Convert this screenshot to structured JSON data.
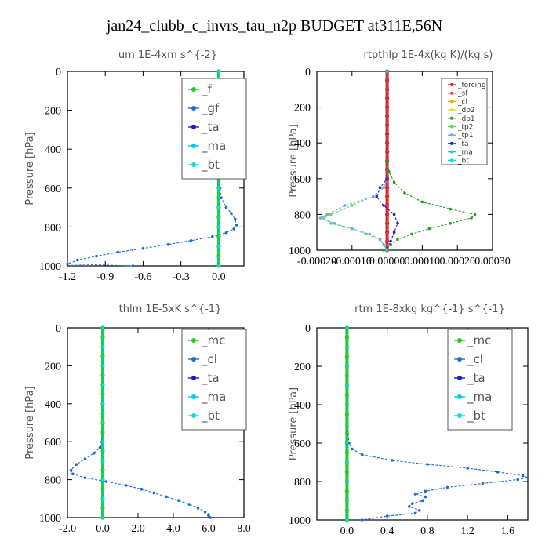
{
  "title": "jan24_clubb_c_invrs_tau_n2p  BUDGET at311E,56N",
  "chart_data": [
    {
      "type": "line",
      "title": "um   1E-4xm s^{-2}",
      "ylabel": "Pressure [hPa]",
      "xlim": [
        -1.2,
        0.2
      ],
      "ylim": [
        1000,
        0
      ],
      "xticks": [
        "-1.2",
        "-0.9",
        "-0.6",
        "-0.3",
        "0.0"
      ],
      "xtick_values": [
        -1.2,
        -0.9,
        -0.6,
        -0.3,
        0.0
      ],
      "yticks": [
        "0",
        "200",
        "400",
        "600",
        "800",
        "1000"
      ],
      "ytick_values": [
        0,
        200,
        400,
        600,
        800,
        1000
      ],
      "legend": {
        "position": "top-right",
        "size": "large",
        "entries": [
          "_f",
          "_gf",
          "_ta",
          "_ma",
          "_bt"
        ]
      },
      "series": [
        {
          "name": "_f",
          "color": "#22cc22",
          "y": [
            0,
            50,
            100,
            150,
            200,
            250,
            300,
            350,
            400,
            450,
            500,
            550,
            600,
            650,
            700,
            750,
            800,
            850,
            900,
            950,
            1000
          ],
          "x": [
            0,
            0,
            0,
            0,
            0,
            0,
            0,
            0,
            0,
            0,
            0,
            0,
            0,
            0,
            0,
            0,
            0,
            0,
            0,
            0,
            0
          ]
        },
        {
          "name": "_gf",
          "color": "#1a6cdc",
          "y": [
            0,
            100,
            200,
            300,
            400,
            500,
            600,
            650,
            700,
            730,
            760,
            790,
            810,
            830,
            850,
            870,
            890,
            910,
            930,
            950,
            970,
            990,
            1000
          ],
          "x": [
            0,
            0,
            0,
            0,
            0,
            0,
            0.01,
            0.02,
            0.06,
            0.1,
            0.13,
            0.14,
            0.12,
            0.06,
            -0.05,
            -0.22,
            -0.4,
            -0.6,
            -0.8,
            -0.97,
            -1.12,
            -1.2,
            -0.68
          ]
        },
        {
          "name": "_ta",
          "color": "#1a1add",
          "y": [
            0,
            200,
            400,
            600,
            800,
            1000
          ],
          "x": [
            0,
            0,
            0,
            0,
            0,
            0
          ]
        },
        {
          "name": "_ma",
          "color": "#00c8ff",
          "y": [
            0,
            200,
            400,
            600,
            800,
            1000
          ],
          "x": [
            0,
            0,
            0,
            0,
            0,
            0
          ]
        },
        {
          "name": "_bt",
          "color": "#00e0e0",
          "y": [
            0,
            100,
            200,
            300,
            400,
            500,
            600,
            700,
            800,
            900,
            1000
          ],
          "x": [
            0,
            0,
            0,
            0,
            0,
            0,
            0,
            0,
            0,
            0,
            0
          ]
        }
      ]
    },
    {
      "type": "line",
      "title": "rtpthlp   1E-4x(kg K)/(kg s)",
      "ylabel": "Pressure [hPa]",
      "xlim": [
        -0.0002,
        0.0003
      ],
      "ylim": [
        1000,
        0
      ],
      "xticks": [
        "-0.00020",
        "-0.00010",
        "0.00000",
        "0.00010",
        "0.00020",
        "0.00030"
      ],
      "xtick_values": [
        -0.0002,
        -0.0001,
        0,
        0.0001,
        0.0002,
        0.0003
      ],
      "yticks": [
        "0",
        "200",
        "400",
        "600",
        "800",
        "1000"
      ],
      "ytick_values": [
        0,
        200,
        400,
        600,
        800,
        1000
      ],
      "legend": {
        "position": "top-right",
        "size": "small",
        "entries": [
          "_forcing",
          "_sf",
          "_cl",
          "_dp2",
          "_dp1",
          "_tp2",
          "_tp1",
          "_ta",
          "_ma",
          "_bt"
        ]
      },
      "series": [
        {
          "name": "_forcing",
          "color": "#e02020",
          "y": [
            0,
            50,
            100,
            150,
            200,
            250,
            300,
            350,
            400,
            450,
            500,
            550,
            600,
            650,
            700,
            750,
            800,
            850,
            900,
            950,
            1000
          ],
          "x": [
            0,
            0,
            0,
            0,
            0,
            0,
            0,
            0,
            0,
            0,
            0,
            0,
            0,
            0,
            0,
            0,
            0,
            0,
            0,
            0,
            0
          ]
        },
        {
          "name": "_sf",
          "color": "#ff4040",
          "y": [
            0,
            1000
          ],
          "x": [
            0,
            0
          ]
        },
        {
          "name": "_cl",
          "color": "#ffaa00",
          "y": [
            0,
            1000
          ],
          "x": [
            0,
            0
          ]
        },
        {
          "name": "_dp2",
          "color": "#e8e020",
          "y": [
            0,
            1000
          ],
          "x": [
            0,
            0
          ]
        },
        {
          "name": "_dp1",
          "color": "#20a020",
          "y": [
            0,
            500,
            560,
            620,
            680,
            730,
            770,
            800,
            820,
            850,
            880,
            910,
            940,
            970,
            1000
          ],
          "x": [
            0,
            0,
            5e-06,
            2e-05,
            5e-05,
            0.0001,
            0.00018,
            0.00025,
            0.00024,
            0.00018,
            0.00012,
            7e-05,
            3e-05,
            1e-05,
            -1e-05
          ]
        },
        {
          "name": "_tp2",
          "color": "#50e050",
          "y": [
            0,
            600,
            650,
            700,
            750,
            800,
            820,
            850,
            880,
            910,
            940,
            970,
            1000
          ],
          "x": [
            0,
            0,
            -1e-05,
            -4e-05,
            -0.0001,
            -0.00016,
            -0.00018,
            -0.00016,
            -0.0001,
            -6e-05,
            -2e-05,
            -1e-05,
            0
          ]
        },
        {
          "name": "_tp1",
          "color": "#6fa0ff",
          "y": [
            0,
            600,
            650,
            700,
            750,
            800,
            820,
            850,
            880,
            910,
            940,
            970,
            1000
          ],
          "x": [
            0,
            0,
            -1e-05,
            -4e-05,
            -0.00012,
            -0.00017,
            -0.00019,
            -0.00015,
            -0.0001,
            -5e-05,
            -2e-05,
            -1e-05,
            0
          ]
        },
        {
          "name": "_ta",
          "color": "#1a1add",
          "y": [
            0,
            600,
            650,
            700,
            750,
            800,
            850,
            900,
            950,
            1000
          ],
          "x": [
            0,
            0,
            -2e-05,
            -3e-05,
            -1e-05,
            2e-05,
            3e-05,
            2e-05,
            1e-05,
            0
          ]
        },
        {
          "name": "_ma",
          "color": "#00c8ff",
          "y": [
            0,
            1000
          ],
          "x": [
            0,
            0
          ]
        },
        {
          "name": "_bt",
          "color": "#00e0e0",
          "y": [
            0,
            1000
          ],
          "x": [
            0,
            0
          ]
        }
      ]
    },
    {
      "type": "line",
      "title": "thlm   1E-5xK s^{-1}",
      "ylabel": "Pressure [hPa]",
      "xlim": [
        -2.0,
        8.0
      ],
      "ylim": [
        1000,
        0
      ],
      "xticks": [
        "-2.0",
        "0.0",
        "2.0",
        "4.0",
        "6.0",
        "8.0"
      ],
      "xtick_values": [
        -2,
        0,
        2,
        4,
        6,
        8
      ],
      "yticks": [
        "0",
        "200",
        "400",
        "600",
        "800",
        "1000"
      ],
      "ytick_values": [
        0,
        200,
        400,
        600,
        800,
        1000
      ],
      "legend": {
        "position": "top-right",
        "size": "large",
        "entries": [
          "_mc",
          "_cl",
          "_ta",
          "_ma",
          "_bt"
        ]
      },
      "series": [
        {
          "name": "_mc",
          "color": "#22cc22",
          "y": [
            0,
            50,
            100,
            150,
            200,
            250,
            300,
            350,
            400,
            450,
            500,
            550,
            600,
            650,
            700,
            750,
            800,
            850,
            900,
            950,
            1000
          ],
          "x": [
            0,
            0,
            0,
            0,
            0,
            0,
            0,
            0,
            0,
            0,
            0,
            0,
            0,
            0,
            0,
            0,
            0,
            0,
            0,
            0,
            0
          ]
        },
        {
          "name": "_cl",
          "color": "#1a6cdc",
          "y": [
            0,
            100,
            200,
            300,
            400,
            500,
            600,
            630,
            660,
            690,
            720,
            750,
            770,
            790,
            810,
            830,
            850,
            870,
            890,
            910,
            930,
            950,
            970,
            990,
            1000
          ],
          "x": [
            0,
            0,
            0,
            0,
            0,
            0,
            -0.05,
            -0.15,
            -0.5,
            -1.0,
            -1.5,
            -1.8,
            -1.7,
            -1.0,
            0.2,
            1.3,
            2.2,
            2.9,
            3.6,
            4.3,
            4.9,
            5.4,
            5.8,
            6.0,
            6.1
          ]
        },
        {
          "name": "_ta",
          "color": "#1a1add",
          "y": [
            0,
            200,
            400,
            600,
            800,
            1000
          ],
          "x": [
            0,
            0,
            0,
            0,
            0,
            0
          ]
        },
        {
          "name": "_ma",
          "color": "#00c8ff",
          "y": [
            0,
            200,
            400,
            600,
            800,
            1000
          ],
          "x": [
            0,
            0,
            0,
            0,
            0,
            0
          ]
        },
        {
          "name": "_bt",
          "color": "#00e0e0",
          "y": [
            0,
            100,
            200,
            300,
            400,
            500,
            600,
            700,
            800,
            900,
            1000
          ],
          "x": [
            0,
            0,
            0,
            0,
            0,
            0,
            0,
            0,
            0,
            0,
            0
          ]
        }
      ]
    },
    {
      "type": "line",
      "title": "rtm   1E-8xkg kg^{-1} s^{-1}",
      "ylabel": "Pressure [hPa]",
      "xlim": [
        -0.3,
        1.8
      ],
      "ylim": [
        1000,
        0
      ],
      "xticks": [
        "0.0",
        "0.4",
        "0.8",
        "1.2",
        "1.6"
      ],
      "xtick_values": [
        0,
        0.4,
        0.8,
        1.2,
        1.6
      ],
      "yticks": [
        "0",
        "200",
        "400",
        "600",
        "800",
        "1000"
      ],
      "ytick_values": [
        0,
        200,
        400,
        600,
        800,
        1000
      ],
      "legend": {
        "position": "top-right",
        "size": "large",
        "entries": [
          "_mc",
          "_cl",
          "_ta",
          "_ma",
          "_bt"
        ]
      },
      "series": [
        {
          "name": "_mc",
          "color": "#22cc22",
          "y": [
            0,
            50,
            100,
            150,
            200,
            250,
            300,
            350,
            400,
            450,
            500,
            550,
            600,
            650,
            700,
            750,
            800,
            850,
            900,
            950,
            1000
          ],
          "x": [
            0,
            0,
            0,
            0,
            0,
            0,
            0,
            0,
            0,
            0,
            0,
            0,
            0,
            0,
            0,
            0,
            0,
            0,
            0,
            0,
            0
          ]
        },
        {
          "name": "_cl",
          "color": "#1a6cdc",
          "y": [
            0,
            100,
            200,
            300,
            400,
            500,
            600,
            630,
            660,
            690,
            710,
            730,
            750,
            770,
            780,
            790,
            810,
            830,
            850,
            865,
            880,
            900,
            915,
            930,
            950,
            965,
            980,
            1000
          ],
          "x": [
            0,
            0,
            0,
            0,
            0,
            0,
            0.02,
            0.05,
            0.15,
            0.45,
            0.8,
            1.2,
            1.5,
            1.75,
            1.8,
            1.7,
            1.35,
            1.0,
            0.78,
            0.68,
            0.78,
            0.75,
            0.65,
            0.62,
            0.72,
            0.68,
            0.4,
            0.15
          ]
        },
        {
          "name": "_ta",
          "color": "#1a1add",
          "y": [
            0,
            200,
            400,
            600,
            800,
            1000
          ],
          "x": [
            0,
            0,
            0,
            0,
            0,
            0
          ]
        },
        {
          "name": "_ma",
          "color": "#00c8ff",
          "y": [
            0,
            200,
            400,
            600,
            800,
            1000
          ],
          "x": [
            0,
            0,
            0,
            0,
            0,
            0
          ]
        },
        {
          "name": "_bt",
          "color": "#00e0e0",
          "y": [
            0,
            100,
            200,
            300,
            400,
            500,
            600,
            700,
            800,
            900,
            1000
          ],
          "x": [
            0,
            0,
            0,
            0,
            0,
            0,
            0,
            0,
            0,
            0,
            0
          ]
        }
      ]
    }
  ]
}
